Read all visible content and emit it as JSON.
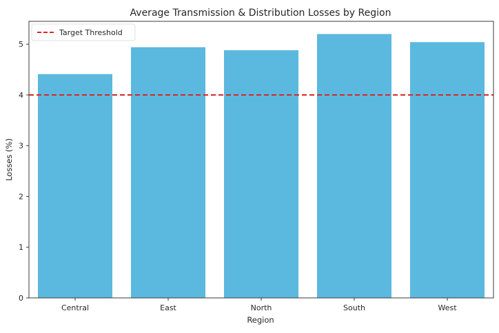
{
  "chart_data": {
    "type": "bar",
    "title": "Average Transmission & Distribution Losses by Region",
    "xlabel": "Region",
    "ylabel": "Losses (%)",
    "categories": [
      "Central",
      "East",
      "North",
      "South",
      "West"
    ],
    "values": [
      4.41,
      4.94,
      4.88,
      5.2,
      5.04
    ],
    "ylim": [
      0,
      5.45
    ],
    "yticks": [
      "0",
      "1",
      "2",
      "3",
      "4",
      "5"
    ],
    "grid": false,
    "bar_color": "#5bb8de",
    "reference_line": {
      "label": "Target Threshold",
      "value": 4,
      "color": "#d62728",
      "style": "dashed"
    },
    "legend": {
      "placement": "top-left",
      "entries": [
        "Target Threshold"
      ]
    }
  }
}
